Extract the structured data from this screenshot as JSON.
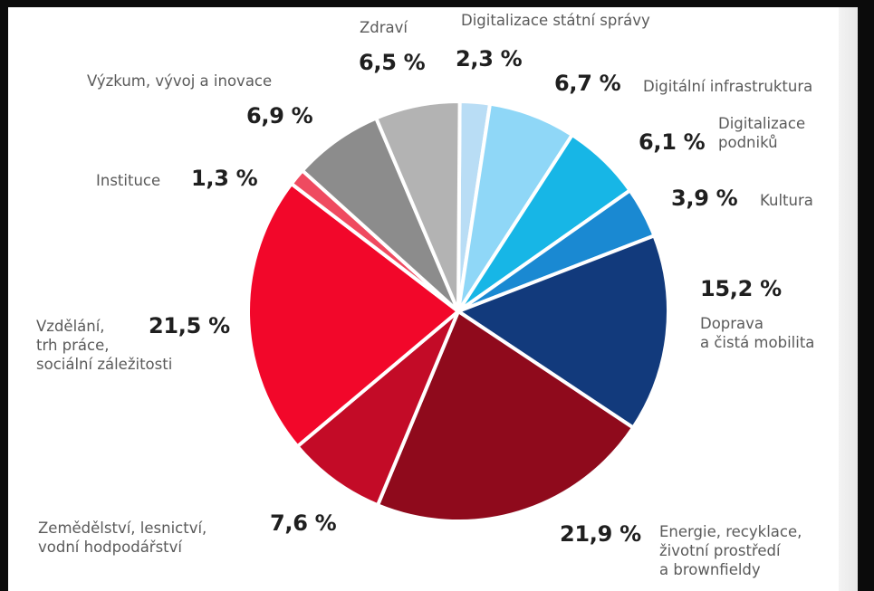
{
  "chart_data": {
    "type": "pie",
    "title": "",
    "slices": [
      {
        "label": "Digitalizace státní správy",
        "value": 2.3,
        "value_label": "2,3 %",
        "color": "#b9ddf5"
      },
      {
        "label": "Digitální infrastruktura",
        "value": 6.7,
        "value_label": "6,7 %",
        "color": "#8fd7f7"
      },
      {
        "label": "Digitalizace\npodniků",
        "value": 6.1,
        "value_label": "6,1 %",
        "color": "#17b6e6"
      },
      {
        "label": "Kultura",
        "value": 3.9,
        "value_label": "3,9 %",
        "color": "#1a89d2"
      },
      {
        "label": "Doprava\na čistá mobilita",
        "value": 15.2,
        "value_label": "15,2 %",
        "color": "#123a7c"
      },
      {
        "label": "Energie, recyklace,\nživotní prostředí\na brownfieldy",
        "value": 21.9,
        "value_label": "21,9 %",
        "color": "#8f0a1c"
      },
      {
        "label": "Zemědělství, lesnictví,\nvodní hodpodářství",
        "value": 7.6,
        "value_label": "7,6 %",
        "color": "#c30b27"
      },
      {
        "label": "Vzdělání,\ntrh práce,\nsociální záležitosti",
        "value": 21.5,
        "value_label": "21,5 %",
        "color": "#f2072a"
      },
      {
        "label": "Instituce",
        "value": 1.3,
        "value_label": "1,3 %",
        "color": "#ef4a60"
      },
      {
        "label": "Výzkum, vývoj a inovace",
        "value": 6.9,
        "value_label": "6,9 %",
        "color": "#8c8c8c"
      },
      {
        "label": "Zdraví",
        "value": 6.5,
        "value_label": "6,5 %",
        "color": "#b3b3b3"
      }
    ]
  }
}
